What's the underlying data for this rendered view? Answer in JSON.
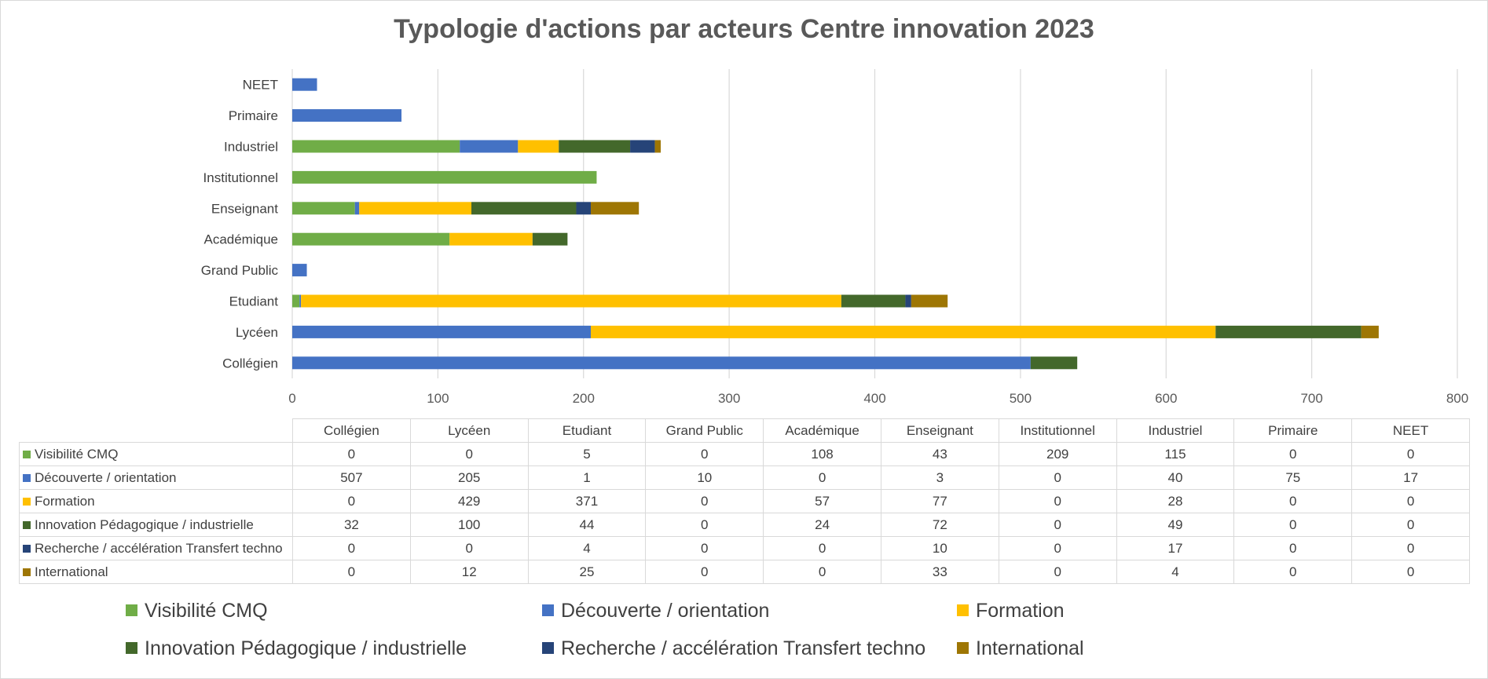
{
  "chart_data": {
    "type": "bar",
    "orientation": "horizontal",
    "stacked": true,
    "title": "Typologie d'actions par acteurs Centre innovation 2023",
    "categories": [
      "Collégien",
      "Lycéen",
      "Etudiant",
      "Grand Public",
      "Académique",
      "Enseignant",
      "Institutionnel",
      "Industriel",
      "Primaire",
      "NEET"
    ],
    "series": [
      {
        "name": "Visibilité CMQ",
        "color": "#70ad47",
        "values": [
          0,
          0,
          5,
          0,
          108,
          43,
          209,
          115,
          0,
          0
        ]
      },
      {
        "name": "Découverte / orientation",
        "color": "#4472c4",
        "values": [
          507,
          205,
          1,
          10,
          0,
          3,
          0,
          40,
          75,
          17
        ]
      },
      {
        "name": "Formation",
        "color": "#ffc000",
        "values": [
          0,
          429,
          371,
          0,
          57,
          77,
          0,
          28,
          0,
          0
        ]
      },
      {
        "name": "Innovation Pédagogique / industrielle",
        "color": "#43682b",
        "values": [
          32,
          100,
          44,
          0,
          24,
          72,
          0,
          49,
          0,
          0
        ]
      },
      {
        "name": "Recherche / accélération Transfert techno",
        "color": "#264478",
        "values": [
          0,
          0,
          4,
          0,
          0,
          10,
          0,
          17,
          0,
          0
        ]
      },
      {
        "name": "International",
        "color": "#9e7604",
        "values": [
          0,
          12,
          25,
          0,
          0,
          33,
          0,
          4,
          0,
          0
        ]
      }
    ],
    "xlim": [
      0,
      800
    ],
    "xticks": [
      0,
      100,
      200,
      300,
      400,
      500,
      600,
      700,
      800
    ],
    "grid": true,
    "legend_position": "bottom",
    "data_table": true
  }
}
